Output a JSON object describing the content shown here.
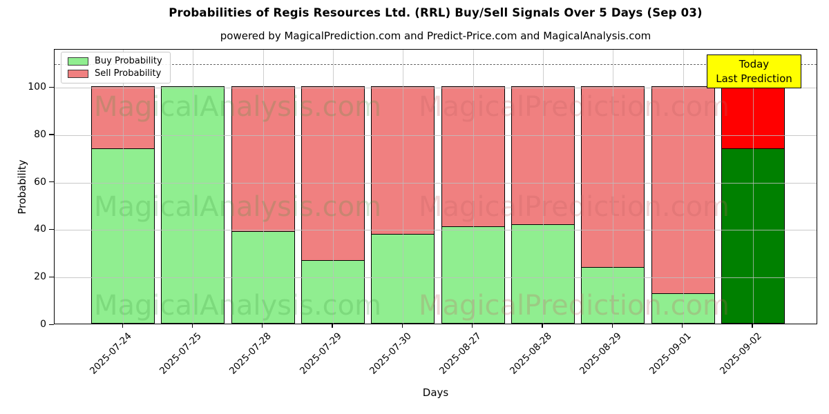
{
  "title": "Probabilities of Regis Resources Ltd. (RRL) Buy/Sell Signals Over 5 Days (Sep 03)",
  "subtitle": "powered by MagicalPrediction.com and Predict-Price.com and MagicalAnalysis.com",
  "watermarks": {
    "left_text": "MagicalAnalysis.com",
    "right_text": "MagicalPrediction.com"
  },
  "annotation": {
    "line1": "Today",
    "line2": "Last Prediction",
    "bg_color": "#ffff00"
  },
  "legend": {
    "items": [
      {
        "label": "Buy Probability",
        "color": "#90ee90"
      },
      {
        "label": "Sell Probability",
        "color": "#f08080"
      }
    ]
  },
  "axes": {
    "xlabel": "Days",
    "ylabel": "Probability",
    "yticks": [
      0,
      20,
      40,
      60,
      80,
      100
    ]
  },
  "chart_data": {
    "type": "bar",
    "stacked": true,
    "title": "Probabilities of Regis Resources Ltd. (RRL) Buy/Sell Signals Over 5 Days (Sep 03)",
    "xlabel": "Days",
    "ylabel": "Probability",
    "ylim": [
      0,
      116
    ],
    "dashed_reference_line_y": 110,
    "grid": true,
    "legend_position": "upper left",
    "categories": [
      "2025-07-24",
      "2025-07-25",
      "2025-07-28",
      "2025-07-29",
      "2025-07-30",
      "2025-08-27",
      "2025-08-28",
      "2025-08-29",
      "2025-09-01",
      "2025-09-02"
    ],
    "series": [
      {
        "name": "Buy Probability",
        "color": "#90ee90",
        "values": [
          74,
          100,
          39,
          27,
          38,
          41,
          42,
          24,
          13,
          74
        ]
      },
      {
        "name": "Sell Probability",
        "color": "#f08080",
        "values": [
          26,
          0,
          61,
          73,
          62,
          59,
          58,
          76,
          87,
          26
        ]
      }
    ],
    "today_bar": {
      "category": "2025-09-02",
      "index": 9,
      "buy_color": "#008000",
      "sell_color": "#ff0000",
      "buy_value": 74,
      "sell_value": 26
    },
    "bar_edge_color": "#000000"
  }
}
